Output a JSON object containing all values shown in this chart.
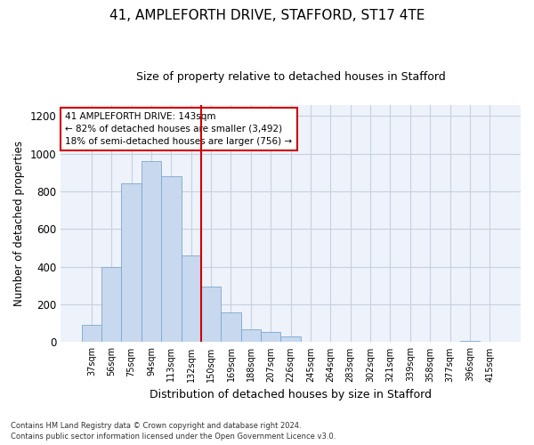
{
  "title1": "41, AMPLEFORTH DRIVE, STAFFORD, ST17 4TE",
  "title2": "Size of property relative to detached houses in Stafford",
  "xlabel": "Distribution of detached houses by size in Stafford",
  "ylabel": "Number of detached properties",
  "categories": [
    "37sqm",
    "56sqm",
    "75sqm",
    "94sqm",
    "113sqm",
    "132sqm",
    "150sqm",
    "169sqm",
    "188sqm",
    "207sqm",
    "226sqm",
    "245sqm",
    "264sqm",
    "283sqm",
    "302sqm",
    "321sqm",
    "339sqm",
    "358sqm",
    "377sqm",
    "396sqm",
    "415sqm"
  ],
  "values": [
    90,
    400,
    845,
    960,
    880,
    460,
    295,
    160,
    70,
    52,
    32,
    0,
    0,
    0,
    0,
    0,
    0,
    0,
    0,
    8,
    0
  ],
  "bar_color": "#c8d8ee",
  "bar_edge_color": "#7aa8d0",
  "vline_x": 6,
  "vline_color": "#cc0000",
  "annotation_text": "41 AMPLEFORTH DRIVE: 143sqm\n← 82% of detached houses are smaller (3,492)\n18% of semi-detached houses are larger (756) →",
  "annotation_box_color": "white",
  "annotation_box_edge_color": "#cc0000",
  "ylim": [
    0,
    1260
  ],
  "yticks": [
    0,
    200,
    400,
    600,
    800,
    1000,
    1200
  ],
  "footnote": "Contains HM Land Registry data © Crown copyright and database right 2024.\nContains public sector information licensed under the Open Government Licence v3.0.",
  "background_color": "#eef2fa",
  "grid_color": "#c8cfe0",
  "title1_fontsize": 11,
  "title2_fontsize": 9,
  "ylabel_fontsize": 8.5,
  "xlabel_fontsize": 9
}
